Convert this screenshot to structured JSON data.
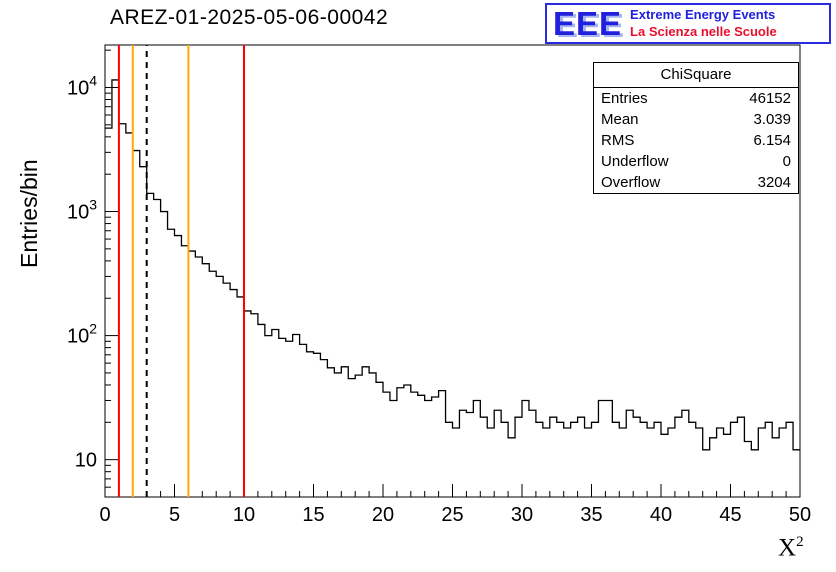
{
  "page": {
    "title": "AREZ-01-2025-05-06-00042"
  },
  "logo": {
    "acronym": "EEE",
    "line1": "Extreme Energy Events",
    "line2": "La Scienza nelle Scuole",
    "blue": "#2020dd",
    "red": "#e8112d"
  },
  "stats": {
    "title": "ChiSquare",
    "rows": [
      {
        "label": "Entries",
        "value": "46152"
      },
      {
        "label": "Mean",
        "value": "3.039"
      },
      {
        "label": "RMS",
        "value": "6.154"
      },
      {
        "label": "Underflow",
        "value": "0"
      },
      {
        "label": "Overflow",
        "value": "3204"
      }
    ]
  },
  "chart_data": {
    "type": "bar",
    "title": "AREZ-01-2025-05-06-00042",
    "xlabel_base": "X",
    "xlabel_exp": "2",
    "ylabel": "Entries/bin",
    "xlim": [
      0,
      50
    ],
    "ylim": [
      5,
      22000
    ],
    "yscale": "log",
    "grid": false,
    "bin_start": 0,
    "bin_width": 0.5,
    "values": [
      4700,
      11500,
      5100,
      4300,
      3100,
      2300,
      1400,
      1250,
      1000,
      720,
      640,
      530,
      480,
      430,
      380,
      330,
      300,
      265,
      235,
      205,
      158,
      150,
      123,
      100,
      112,
      95,
      90,
      102,
      85,
      74,
      72,
      64,
      55,
      50,
      56,
      45,
      48,
      56,
      50,
      42,
      35,
      30,
      38,
      40,
      35,
      33,
      30,
      32,
      36,
      20,
      18,
      25,
      24,
      30,
      22,
      18,
      25,
      20,
      15,
      22,
      30,
      25,
      20,
      18,
      22,
      20,
      18,
      20,
      22,
      18,
      20,
      30,
      30,
      20,
      18,
      25,
      22,
      20,
      18,
      20,
      16,
      18,
      22,
      25,
      20,
      18,
      12,
      15,
      18,
      16,
      20,
      22,
      14,
      12,
      18,
      20,
      15,
      18,
      20,
      12
    ],
    "x_major_ticks": [
      0,
      5,
      10,
      15,
      20,
      25,
      30,
      35,
      40,
      45,
      50
    ],
    "y_major_exponents": [
      1,
      2,
      3,
      4
    ],
    "line_color": "#000000",
    "vlines": [
      {
        "x": 1,
        "color": "#ff0000",
        "style": "solid"
      },
      {
        "x": 2,
        "color": "#ffaa00",
        "style": "solid"
      },
      {
        "x": 3,
        "color": "#000000",
        "style": "dashed"
      },
      {
        "x": 6,
        "color": "#ffaa00",
        "style": "solid"
      },
      {
        "x": 10,
        "color": "#ff0000",
        "style": "solid"
      }
    ]
  }
}
